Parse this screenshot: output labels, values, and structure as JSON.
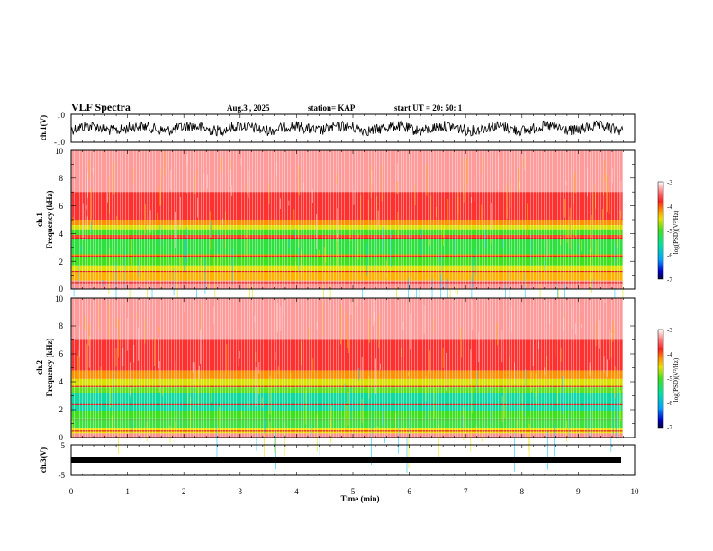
{
  "header": {
    "title": "VLF Spectra",
    "date": "Aug.3  , 2025",
    "station": "station= KAP",
    "start": "start  UT  =   20: 50: 1"
  },
  "chart_data": [
    {
      "type": "line",
      "name": "ch1-waveform",
      "ylabel": "ch.1(V)",
      "ylim": [
        -10,
        10
      ],
      "yticks": [
        "10",
        "-10"
      ]
    },
    {
      "type": "heatmap",
      "name": "ch1-spectrogram",
      "ylabel_top": "ch.1",
      "ylabel": "Frequency  (kHz)",
      "ylim": [
        0,
        10
      ],
      "yticks": [
        "0",
        "2",
        "4",
        "6",
        "8",
        "10"
      ],
      "colorbar": {
        "label": "log(PSD)(V²/Hz)",
        "range": [
          -7,
          -3
        ],
        "ticks": [
          "-3",
          "-4",
          "-5",
          "-6",
          "-7"
        ]
      }
    },
    {
      "type": "heatmap",
      "name": "ch2-spectrogram",
      "ylabel_top": "ch.2",
      "ylabel": "Frequency  (kHz)",
      "ylim": [
        0,
        10
      ],
      "yticks": [
        "0",
        "2",
        "4",
        "6",
        "8",
        "10"
      ],
      "colorbar": {
        "label": "log(PSD)(V²/Hz)",
        "range": [
          -7,
          -3
        ],
        "ticks": [
          "-3",
          "-4",
          "-5",
          "-6",
          "-7"
        ]
      }
    },
    {
      "type": "line",
      "name": "ch3-waveform",
      "ylabel": "ch.3(V)",
      "ylim": [
        -5,
        5
      ],
      "yticks": [
        "5",
        "-5"
      ],
      "xlabel": "Time  (min)",
      "xlim": [
        0,
        10
      ],
      "xticks": [
        "0",
        "1",
        "2",
        "3",
        "4",
        "5",
        "6",
        "7",
        "8",
        "9",
        "10"
      ]
    }
  ]
}
